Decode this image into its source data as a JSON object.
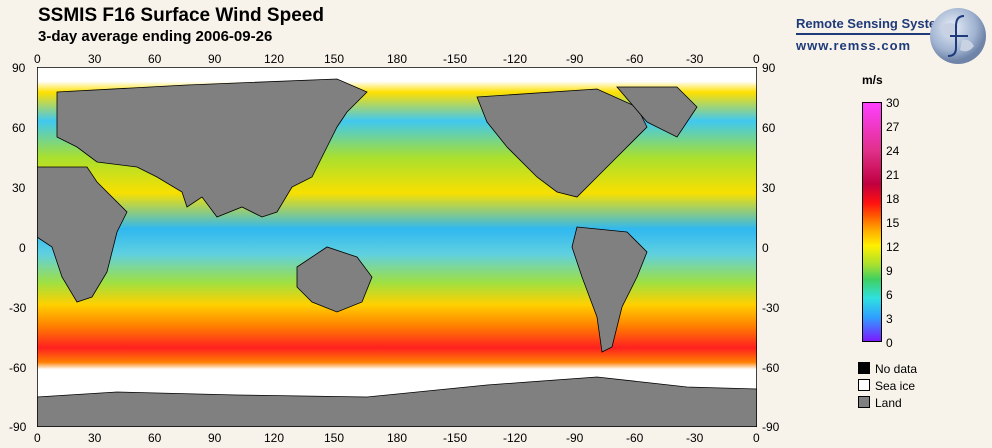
{
  "header": {
    "title": "SSMIS F16 Surface Wind Speed",
    "subtitle": "3-day average ending 2006-09-26"
  },
  "brand": {
    "name": "Remote Sensing Systems",
    "url": "www.remss.com"
  },
  "map": {
    "top_ticks": [
      "0",
      "30",
      "60",
      "90",
      "120",
      "150",
      "180",
      "-150",
      "-120",
      "-90",
      "-60",
      "-30",
      "0"
    ],
    "bottom_ticks": [
      "0",
      "30",
      "60",
      "90",
      "120",
      "150",
      "180",
      "-150",
      "-120",
      "-90",
      "-60",
      "-30",
      "0"
    ],
    "left_ticks": [
      "90",
      "60",
      "30",
      "0",
      "-30",
      "-60",
      "-90"
    ],
    "right_ticks": [
      "90",
      "60",
      "30",
      "0",
      "-30",
      "-60",
      "-90"
    ],
    "ocean_color": "#f0c020",
    "land_color": "#808080",
    "sea_ice_color": "#ffffff",
    "no_data_color": "#000000"
  },
  "colorbar": {
    "unit": "m/s",
    "range": [
      0,
      30
    ],
    "labels": [
      "30",
      "27",
      "24",
      "21",
      "18",
      "15",
      "12",
      "9",
      "6",
      "3",
      "0"
    ]
  },
  "legend": [
    {
      "label": "No data",
      "color": "#000000"
    },
    {
      "label": "Sea ice",
      "color": "#ffffff"
    },
    {
      "label": "Land",
      "color": "#808080"
    }
  ]
}
